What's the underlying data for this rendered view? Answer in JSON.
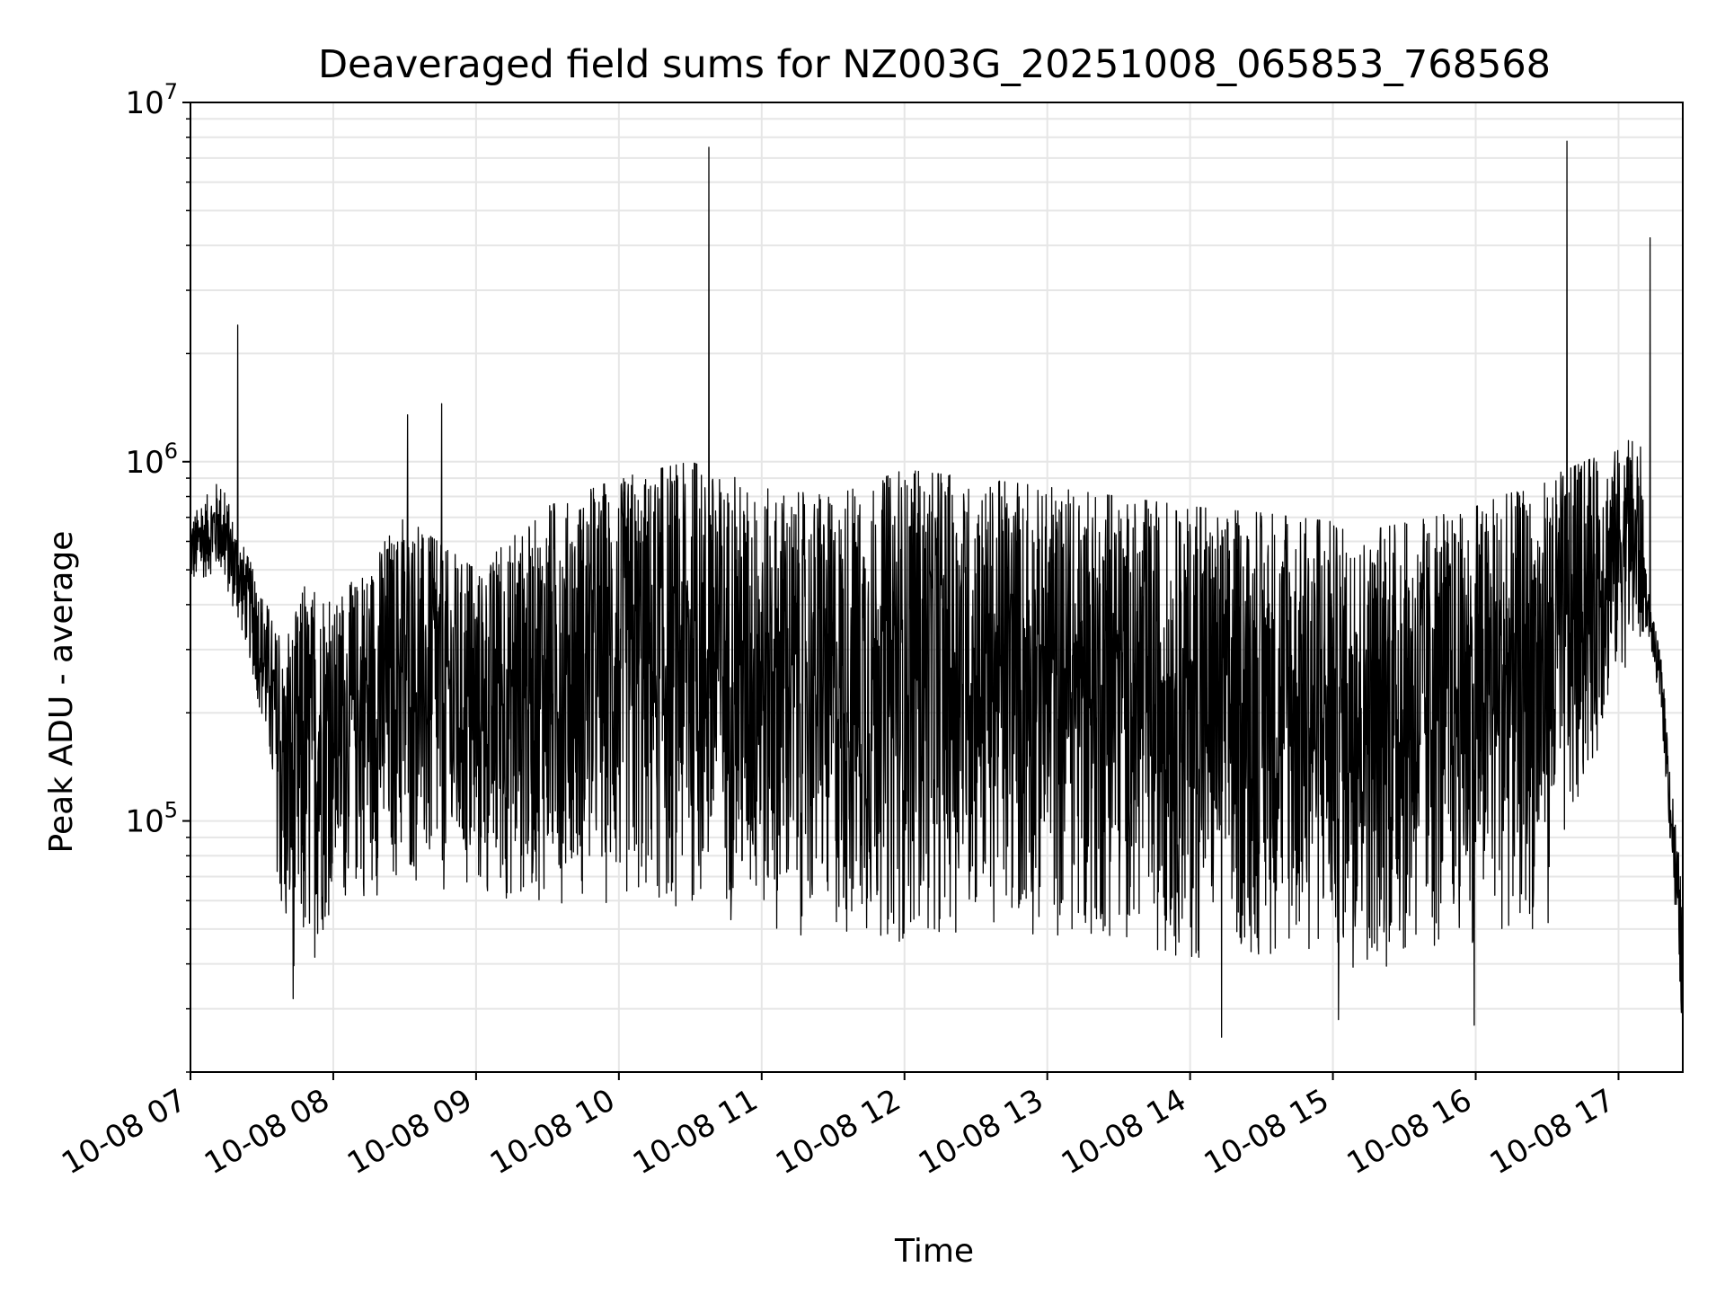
{
  "chart_data": {
    "type": "line",
    "title": "Deaveraged field sums for NZ003G_20251008_065853_768568",
    "xlabel": "Time",
    "ylabel": "Peak ADU - average",
    "yscale": "log",
    "ylim": [
      20000,
      10000000
    ],
    "xlim_hours": [
      7.0,
      17.45
    ],
    "grid": true,
    "line_color": "#000000",
    "grid_color": "#e6e6e6",
    "x_ticks": [
      {
        "label": "10-08 07",
        "hour": 7
      },
      {
        "label": "10-08 08",
        "hour": 8
      },
      {
        "label": "10-08 09",
        "hour": 9
      },
      {
        "label": "10-08 10",
        "hour": 10
      },
      {
        "label": "10-08 11",
        "hour": 11
      },
      {
        "label": "10-08 12",
        "hour": 12
      },
      {
        "label": "10-08 13",
        "hour": 13
      },
      {
        "label": "10-08 14",
        "hour": 14
      },
      {
        "label": "10-08 15",
        "hour": 15
      },
      {
        "label": "10-08 16",
        "hour": 16
      },
      {
        "label": "10-08 17",
        "hour": 17
      }
    ],
    "y_ticks": [
      {
        "base": "10",
        "exp": "5",
        "value": 100000
      },
      {
        "base": "10",
        "exp": "6",
        "value": 1000000
      },
      {
        "base": "10",
        "exp": "7",
        "value": 10000000
      }
    ],
    "series": [
      {
        "name": "Peak ADU - average",
        "envelope": {
          "hours": [
            7.0,
            7.2,
            7.4,
            7.55,
            7.65,
            7.8,
            8.0,
            8.5,
            9.0,
            9.5,
            10.0,
            10.5,
            11.0,
            11.5,
            12.0,
            12.5,
            13.0,
            13.5,
            14.0,
            14.5,
            15.0,
            15.3,
            15.7,
            16.0,
            16.5,
            17.0,
            17.15,
            17.2,
            17.3,
            17.45
          ],
          "upper": [
            700000,
            900000,
            550000,
            400000,
            300000,
            450000,
            400000,
            700000,
            500000,
            750000,
            900000,
            1000000,
            850000,
            800000,
            950000,
            900000,
            850000,
            800000,
            750000,
            720000,
            680000,
            650000,
            700000,
            750000,
            900000,
            1100000,
            1200000,
            450000,
            280000,
            60000
          ],
          "lower": [
            450000,
            500000,
            300000,
            150000,
            40000,
            35000,
            55000,
            65000,
            55000,
            60000,
            55000,
            55000,
            50000,
            45000,
            45000,
            50000,
            45000,
            45000,
            40000,
            40000,
            40000,
            38000,
            40000,
            45000,
            50000,
            250000,
            300000,
            350000,
            200000,
            25000
          ]
        },
        "spikes": [
          {
            "hour": 7.33,
            "value": 2400000
          },
          {
            "hour": 8.52,
            "value": 1350000
          },
          {
            "hour": 8.76,
            "value": 1450000
          },
          {
            "hour": 10.63,
            "value": 7500000
          },
          {
            "hour": 16.64,
            "value": 7800000
          },
          {
            "hour": 17.22,
            "value": 4200000
          },
          {
            "hour": 14.22,
            "value": 25000
          },
          {
            "hour": 15.04,
            "value": 28000
          },
          {
            "hour": 15.99,
            "value": 27000
          },
          {
            "hour": 7.72,
            "value": 32000
          }
        ]
      }
    ]
  }
}
